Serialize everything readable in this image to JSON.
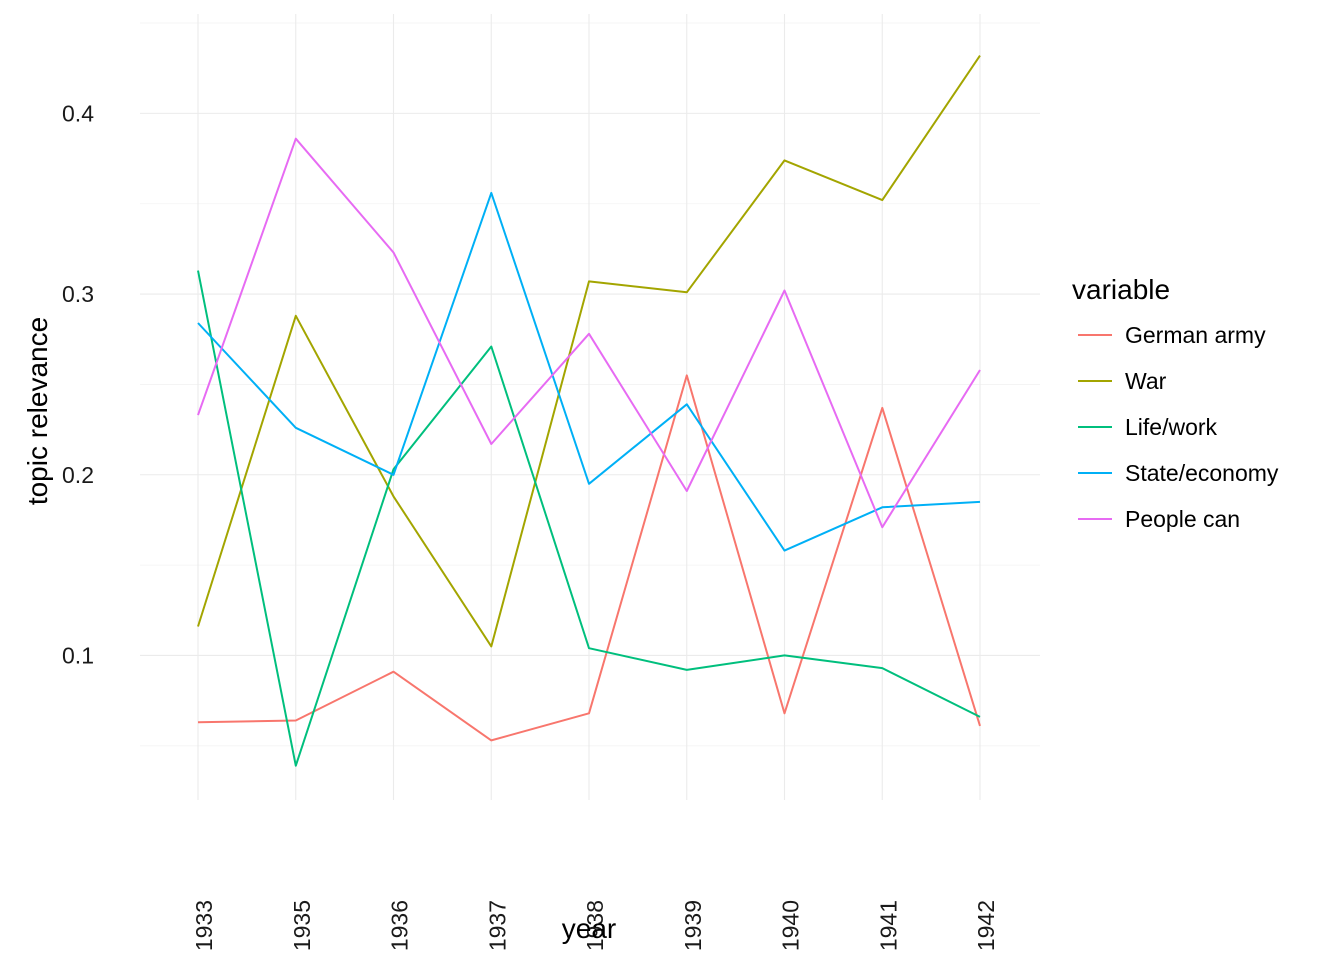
{
  "chart_data": {
    "type": "line",
    "xlabel": "year",
    "ylabel": "topic relevance",
    "x": [
      "1933",
      "1935",
      "1936",
      "1937",
      "1938",
      "1939",
      "1940",
      "1941",
      "1942"
    ],
    "ylim": [
      0.02,
      0.455
    ],
    "y_ticks": [
      "0.1",
      "0.2",
      "0.3",
      "0.4"
    ],
    "grid": true,
    "legend": {
      "title": "variable",
      "position": "right"
    },
    "series": [
      {
        "name": "German army",
        "color": "#f8766d",
        "values": [
          0.063,
          0.064,
          0.091,
          0.053,
          0.068,
          0.255,
          0.068,
          0.237,
          0.061
        ]
      },
      {
        "name": "War",
        "color": "#a3a500",
        "values": [
          0.116,
          0.288,
          0.188,
          0.105,
          0.307,
          0.301,
          0.374,
          0.352,
          0.432
        ]
      },
      {
        "name": "Life/work",
        "color": "#00bf7d",
        "values": [
          0.313,
          0.039,
          0.203,
          0.271,
          0.104,
          0.092,
          0.1,
          0.093,
          0.066
        ]
      },
      {
        "name": "State/economy",
        "color": "#00b0f6",
        "values": [
          0.284,
          0.226,
          0.2,
          0.356,
          0.195,
          0.239,
          0.158,
          0.182,
          0.185
        ]
      },
      {
        "name": "People can",
        "color": "#e76bf3",
        "values": [
          0.233,
          0.386,
          0.323,
          0.217,
          0.278,
          0.191,
          0.302,
          0.171,
          0.258
        ]
      }
    ]
  }
}
